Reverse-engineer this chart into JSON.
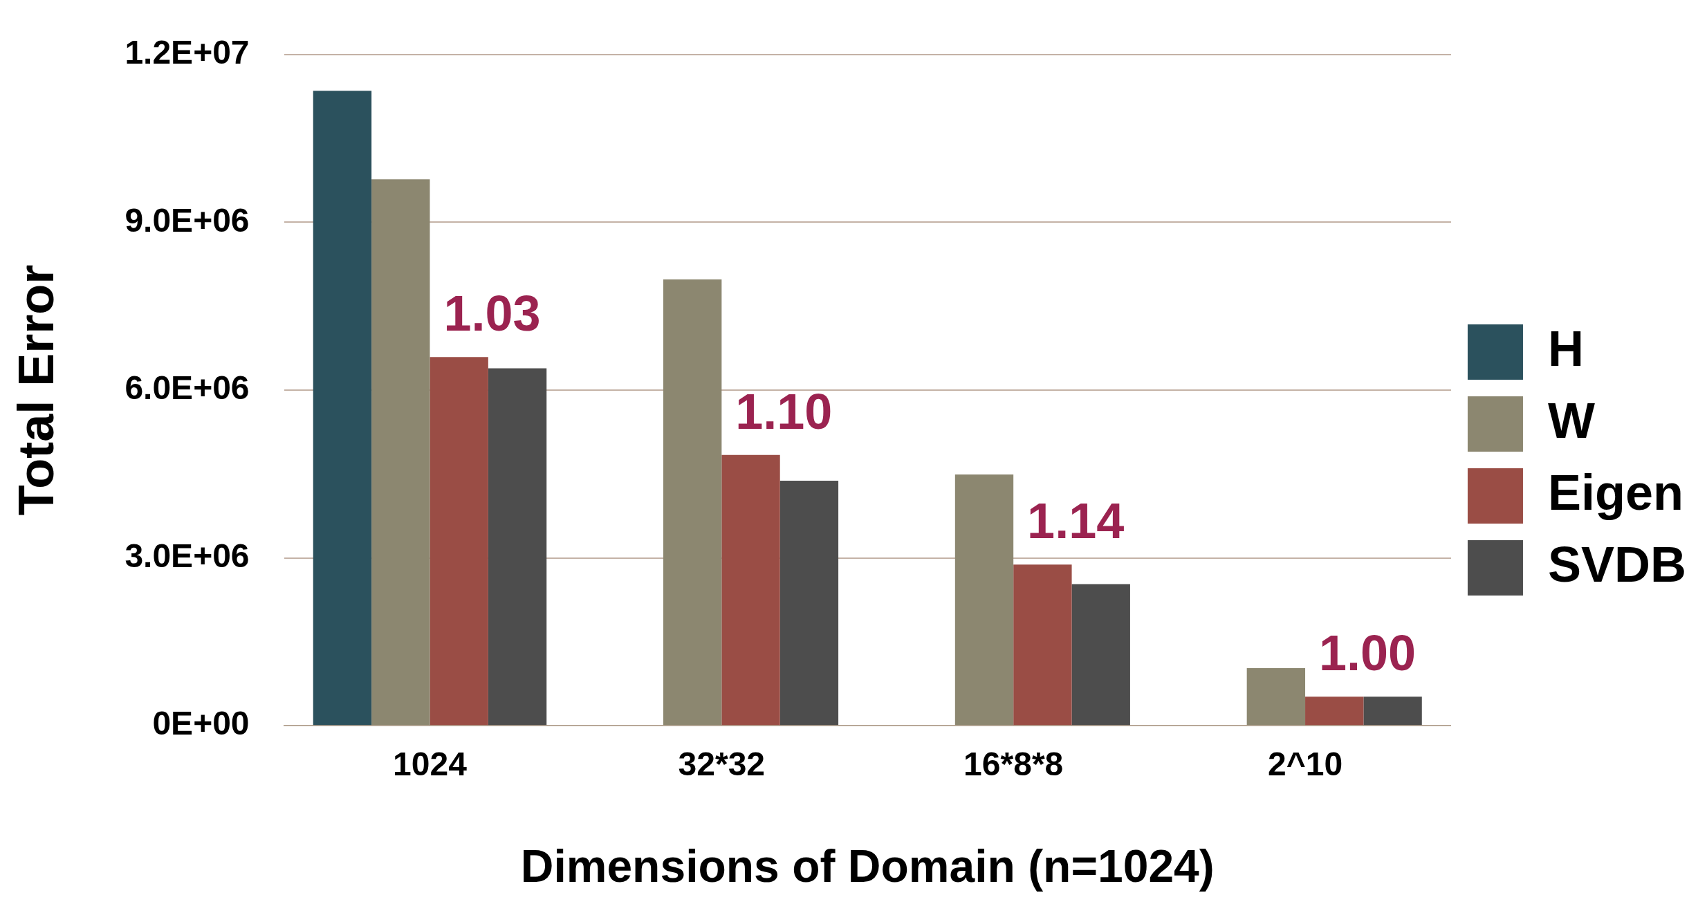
{
  "chart_data": {
    "type": "bar",
    "xlabel": "Dimensions of Domain (n=1024)",
    "ylabel": "Total Error",
    "categories": [
      "1024",
      "32*32",
      "16*8*8",
      "2^10"
    ],
    "series": [
      {
        "name": "H",
        "color": "#2b515d",
        "values": [
          11350000,
          null,
          null,
          null
        ]
      },
      {
        "name": "W",
        "color": "#8c8770",
        "values": [
          9770000,
          7980000,
          4490000,
          1030000
        ]
      },
      {
        "name": "Eigen",
        "color": "#9a4d45",
        "values": [
          6590000,
          4840000,
          2880000,
          520000
        ]
      },
      {
        "name": "SVDB",
        "color": "#4d4d4d",
        "values": [
          6390000,
          4380000,
          2530000,
          520000
        ]
      }
    ],
    "ylim": [
      0,
      12000000
    ],
    "yticks": [
      {
        "value": 0,
        "label": "0E+00"
      },
      {
        "value": 3000000,
        "label": "3.0E+06"
      },
      {
        "value": 6000000,
        "label": "6.0E+06"
      },
      {
        "value": 9000000,
        "label": "9.0E+06"
      },
      {
        "value": 12000000,
        "label": "1.2E+07"
      }
    ],
    "grid": "y",
    "legend": "right",
    "annotations": [
      {
        "text": "1.03",
        "x": "1024",
        "y": 6590000
      },
      {
        "text": "1.10",
        "x": "32*32",
        "y": 4840000
      },
      {
        "text": "1.14",
        "x": "16*8*8",
        "y": 2880000
      },
      {
        "text": "1.00",
        "x": "2^10",
        "y": 520000
      }
    ]
  }
}
